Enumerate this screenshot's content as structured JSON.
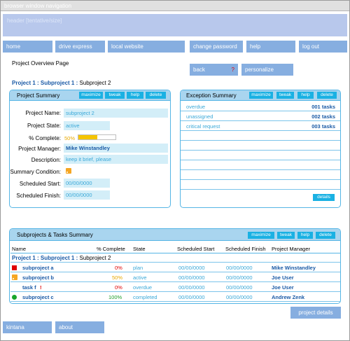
{
  "browser": {
    "title": "browser window navigation"
  },
  "header": {
    "label": "header [tentative/size]"
  },
  "nav": {
    "home": "home",
    "drive_express": "drive express",
    "local_website": "local website",
    "change_password": "change password",
    "help": "help",
    "logout": "log out"
  },
  "page": {
    "title": "Project Overview Page",
    "back": "back",
    "back_marker": "?",
    "personalize": "personalize"
  },
  "breadcrumb": {
    "part1": "Project 1 : Subproject 1 :",
    "part2": "Subproject 2"
  },
  "panel_buttons": {
    "maximize": "maximize",
    "tweak": "tweak",
    "help": "help",
    "delete": "delete"
  },
  "project_summary": {
    "title": "Project Summary",
    "labels": {
      "name": "Project Name:",
      "state": "Project State:",
      "complete": "% Complete:",
      "manager": "Project Manager:",
      "description": "Description:",
      "condition": "Summary Condition:",
      "start": "Scheduled Start:",
      "finish": "Scheduled Finish:"
    },
    "values": {
      "name": "subproject 2",
      "state": "active",
      "complete": "50%",
      "complete_fraction": 0.5,
      "manager": "Mike Winstandley",
      "description": "keep it brief, please",
      "condition_icon": "rss-icon",
      "start": "00/00/0000",
      "finish": "00/00/0000"
    },
    "colors": {
      "progress": "#f5c400"
    }
  },
  "exception_summary": {
    "title": "Exception Summary",
    "rows": [
      {
        "name": "overdue",
        "count": "001 tasks"
      },
      {
        "name": "unassigned",
        "count": "002 tasks"
      },
      {
        "name": "critical request",
        "count": "003 tasks"
      }
    ],
    "details": "details"
  },
  "tasks_summary": {
    "title": "Subprojects & Tasks Summary",
    "columns": {
      "name": "Name",
      "complete": "% Complete",
      "state": "State",
      "start": "Scheduled Start",
      "finish": "Scheduled Finish",
      "manager": "Project Manager"
    },
    "breadcrumb1": "Project 1 : Subproject 1 :",
    "breadcrumb2": "Subproject 2",
    "rows": [
      {
        "name": "subproject a",
        "marker": "",
        "complete": "0%",
        "state": "plan",
        "start": "00/00/0000",
        "finish": "00/00/0000",
        "manager": "Mike Winstandley"
      },
      {
        "name": "subproject b",
        "marker": "",
        "complete": "50%",
        "state": "active",
        "start": "00/00/0000",
        "finish": "00/00/0000",
        "manager": "Joe User"
      },
      {
        "name": "task f",
        "marker": "!",
        "complete": "0%",
        "state": "overdue",
        "start": "00/00/0000",
        "finish": "00/00/0000",
        "manager": "Joe User"
      },
      {
        "name": "subproject c",
        "marker": "",
        "complete": "100%",
        "state": "completed",
        "start": "00/00/0000",
        "finish": "00/00/0000",
        "manager": "Andrew Zenk"
      }
    ],
    "icons": [
      "red-square-icon",
      "rss-icon",
      "",
      "green-dot-icon"
    ],
    "colors": {
      "red": "#e00000",
      "yellow": "#f5a623",
      "green": "#17a52a"
    }
  },
  "project_details": "project details",
  "footer": {
    "kintana": "kintana",
    "about": "about"
  }
}
